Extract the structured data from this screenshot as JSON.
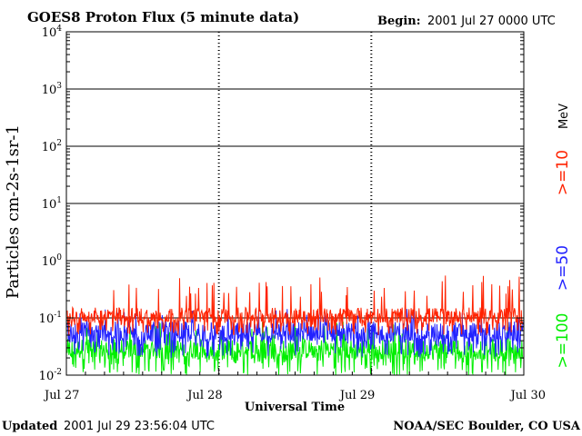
{
  "header": {
    "title": "GOES8 Proton Flux (5 minute data)",
    "begin_label": "Begin:",
    "begin_value": "2001 Jul 27 0000 UTC"
  },
  "footer": {
    "updated_label": "Updated",
    "updated_value": "2001 Jul 29 23:56:04 UTC",
    "source": "NOAA/SEC Boulder, CO USA"
  },
  "colors": {
    "ge10": "#ff2200",
    "ge50": "#2222ff",
    "ge100": "#00ee00"
  },
  "chart_data": {
    "type": "line",
    "title": "GOES8 Proton Flux (5 minute data)",
    "xlabel": "Universal Time",
    "ylabel": "Particles cm-2s-1sr-1",
    "y_scale": "log",
    "ylim": [
      0.01,
      10000
    ],
    "y_ticks": [
      {
        "value": 10000,
        "base": "10",
        "exp": "4"
      },
      {
        "value": 1000,
        "base": "10",
        "exp": "3"
      },
      {
        "value": 100,
        "base": "10",
        "exp": "2"
      },
      {
        "value": 10,
        "base": "10",
        "exp": "1"
      },
      {
        "value": 1,
        "base": "10",
        "exp": "0"
      },
      {
        "value": 0.1,
        "base": "10",
        "exp": "-1"
      },
      {
        "value": 0.01,
        "base": "10",
        "exp": "-2"
      }
    ],
    "x_ticks": [
      "Jul 27",
      "Jul 28",
      "Jul 29",
      "Jul 30"
    ],
    "grid": "horizontal at decades, dashed vertical at day boundaries",
    "legend_placement": "right",
    "legend_unit": "MeV",
    "series": [
      {
        "name": ">=10",
        "color": "#ff2200",
        "typical": 0.1,
        "low": 0.05,
        "peak": 0.55
      },
      {
        "name": ">=50",
        "color": "#2222ff",
        "typical": 0.05,
        "low": 0.02,
        "peak": 0.15
      },
      {
        "name": ">=100",
        "color": "#00ee00",
        "typical": 0.025,
        "low": 0.01,
        "peak": 0.09
      }
    ]
  }
}
